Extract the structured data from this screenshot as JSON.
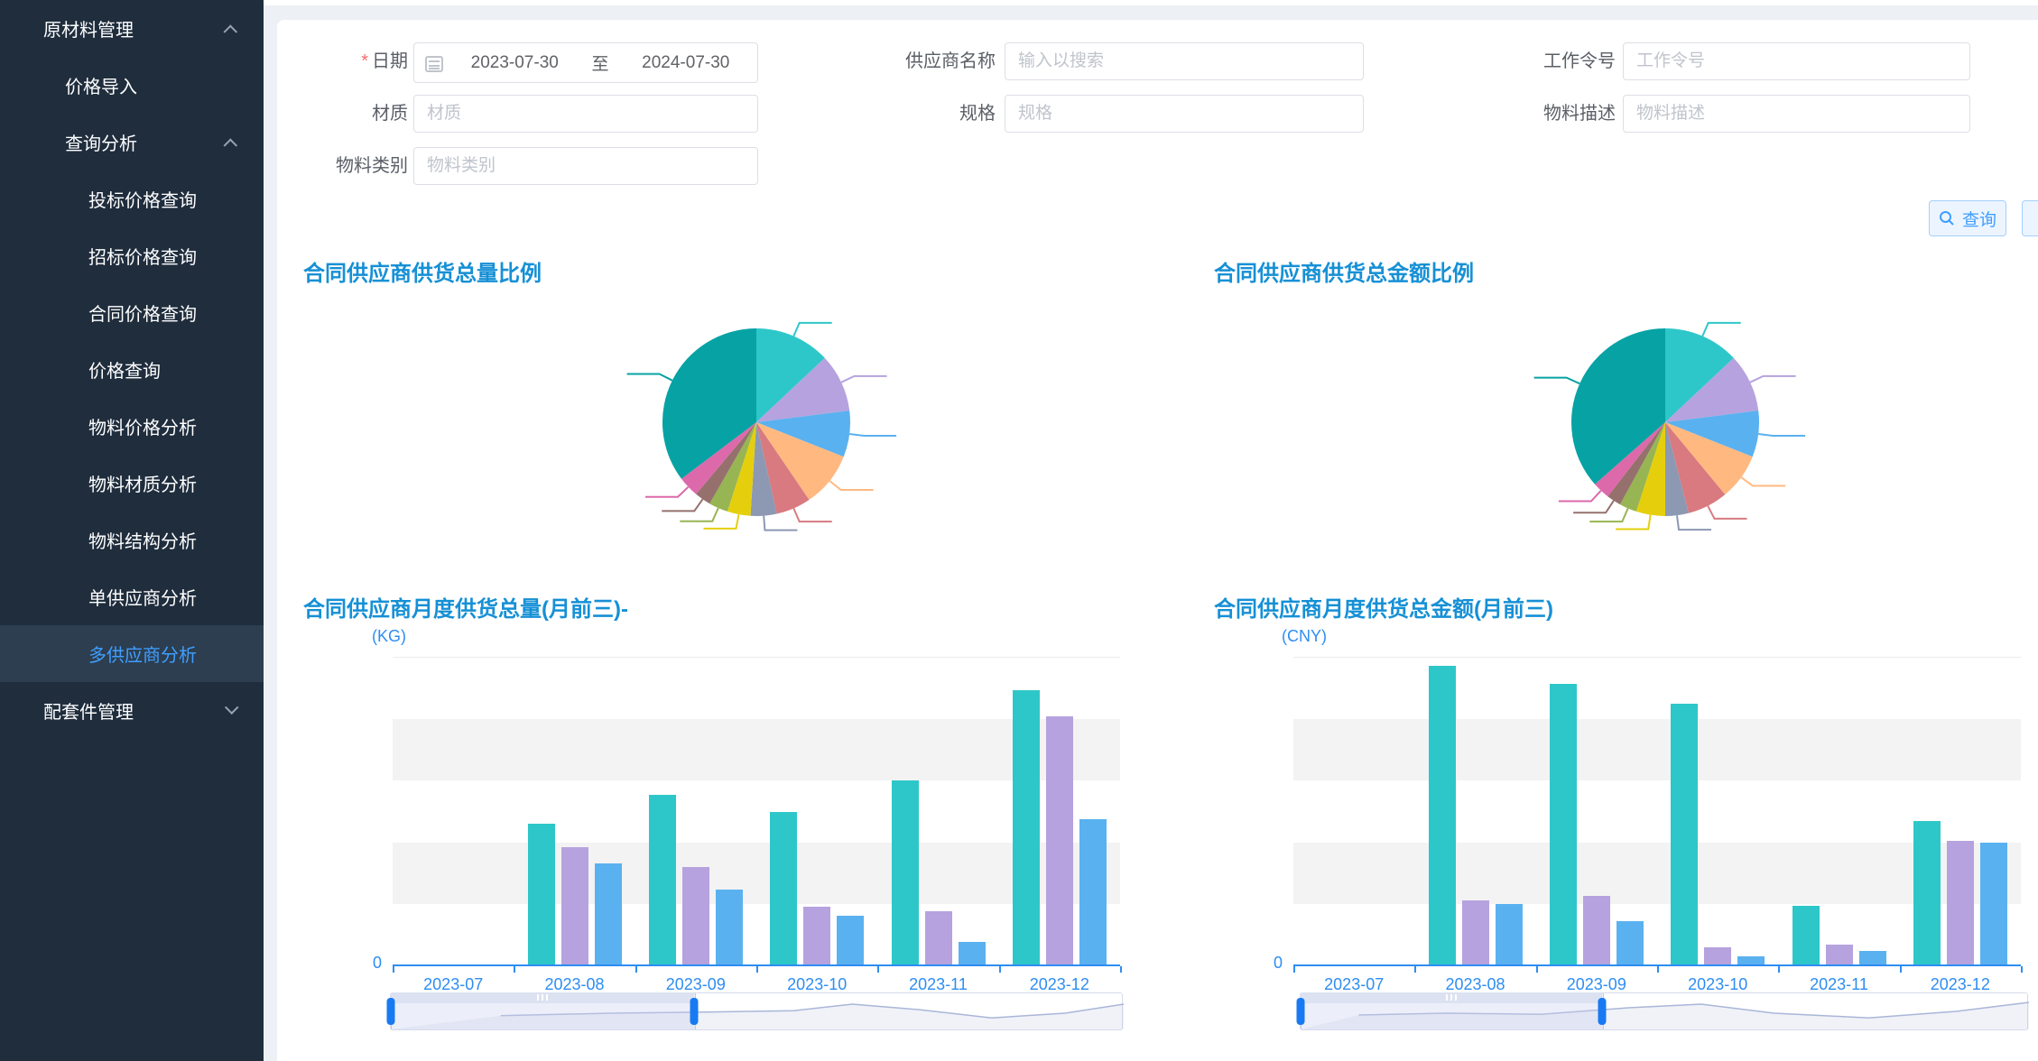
{
  "sidebar": {
    "items": [
      {
        "label": "原材料管理",
        "level": 1,
        "chevron": "up",
        "active": false
      },
      {
        "label": "价格导入",
        "level": 2,
        "chevron": "",
        "active": false
      },
      {
        "label": "查询分析",
        "level": 2,
        "chevron": "up",
        "active": false
      },
      {
        "label": "投标价格查询",
        "level": 3,
        "chevron": "",
        "active": false
      },
      {
        "label": "招标价格查询",
        "level": 3,
        "chevron": "",
        "active": false
      },
      {
        "label": "合同价格查询",
        "level": 3,
        "chevron": "",
        "active": false
      },
      {
        "label": "价格查询",
        "level": 3,
        "chevron": "",
        "active": false
      },
      {
        "label": "物料价格分析",
        "level": 3,
        "chevron": "",
        "active": false
      },
      {
        "label": "物料材质分析",
        "level": 3,
        "chevron": "",
        "active": false
      },
      {
        "label": "物料结构分析",
        "level": 3,
        "chevron": "",
        "active": false
      },
      {
        "label": "单供应商分析",
        "level": 3,
        "chevron": "",
        "active": false
      },
      {
        "label": "多供应商分析",
        "level": 3,
        "chevron": "",
        "active": true
      },
      {
        "label": "配套件管理",
        "level": 1,
        "chevron": "down",
        "active": false
      }
    ],
    "colors": {
      "bg": "#1f2d3d",
      "active_bg": "#2c3e50",
      "active_text": "#409eff"
    }
  },
  "filters": {
    "date": {
      "label": "日期",
      "required": true,
      "start": "2023-07-30",
      "separator": "至",
      "end": "2024-07-30"
    },
    "fields": [
      {
        "key": "supplier",
        "label": "供应商名称",
        "placeholder": "输入以搜索",
        "value": "",
        "col": 2,
        "row": 1
      },
      {
        "key": "work-order",
        "label": "工作令号",
        "placeholder": "工作令号",
        "value": "",
        "col": 3,
        "row": 1
      },
      {
        "key": "material",
        "label": "材质",
        "placeholder": "材质",
        "value": "",
        "col": 1,
        "row": 2
      },
      {
        "key": "spec",
        "label": "规格",
        "placeholder": "规格",
        "value": "",
        "col": 2,
        "row": 2
      },
      {
        "key": "material-desc",
        "label": "物料描述",
        "placeholder": "物料描述",
        "value": "",
        "col": 3,
        "row": 2
      },
      {
        "key": "material-category",
        "label": "物料类别",
        "placeholder": "物料类别",
        "value": "",
        "col": 1,
        "row": 3
      }
    ],
    "query_button": "查询"
  },
  "chart_data": [
    {
      "type": "pie",
      "title": "合同供应商供货总量比例",
      "slices": [
        {
          "value": 13,
          "color": "#2ec7c9"
        },
        {
          "value": 10,
          "color": "#b6a2de"
        },
        {
          "value": 8,
          "color": "#5ab1ef"
        },
        {
          "value": 9.5,
          "color": "#ffb980"
        },
        {
          "value": 6,
          "color": "#d87a80"
        },
        {
          "value": 4.5,
          "color": "#8d98b3"
        },
        {
          "value": 4,
          "color": "#e5cf0d"
        },
        {
          "value": 3.3,
          "color": "#97b552"
        },
        {
          "value": 2.8,
          "color": "#95706d"
        },
        {
          "value": 3.6,
          "color": "#dc69aa"
        },
        {
          "value": 35.3,
          "color": "#07a2a4"
        }
      ],
      "legend": "none",
      "labels_hidden": true
    },
    {
      "type": "pie",
      "title": "合同供应商供货总金额比例",
      "slices": [
        {
          "value": 13,
          "color": "#2ec7c9"
        },
        {
          "value": 10,
          "color": "#b6a2de"
        },
        {
          "value": 8,
          "color": "#5ab1ef"
        },
        {
          "value": 8,
          "color": "#ffb980"
        },
        {
          "value": 7,
          "color": "#d87a80"
        },
        {
          "value": 4,
          "color": "#8d98b3"
        },
        {
          "value": 5,
          "color": "#e5cf0d"
        },
        {
          "value": 3,
          "color": "#97b552"
        },
        {
          "value": 2.5,
          "color": "#95706d"
        },
        {
          "value": 3,
          "color": "#dc69aa"
        },
        {
          "value": 36.5,
          "color": "#07a2a4"
        }
      ],
      "legend": "none",
      "labels_hidden": true
    },
    {
      "type": "bar",
      "title": "合同供应商月度供货总量(月前三)-",
      "ylabel": "(KG)",
      "categories": [
        "2023-07",
        "2023-08",
        "2023-09",
        "2023-10",
        "2023-11",
        "2023-12"
      ],
      "series": [
        {
          "color": "#2ec7c9",
          "values": [
            0,
            46,
            55.5,
            50,
            60,
            89.5
          ]
        },
        {
          "color": "#b6a2de",
          "values": [
            0,
            38.5,
            32,
            19,
            17.5,
            81
          ]
        },
        {
          "color": "#5ab1ef",
          "values": [
            0,
            33,
            24.5,
            16,
            7.7,
            47.5
          ]
        }
      ],
      "y_axis_visible_label": "0",
      "ylim": [
        0,
        100
      ],
      "grid": "striped",
      "datazoom": {
        "start_pct": 0,
        "end_pct": 41.5
      }
    },
    {
      "type": "bar",
      "title": "合同供应商月度供货总金额(月前三)",
      "ylabel": "(CNY)",
      "categories": [
        "2023-07",
        "2023-08",
        "2023-09",
        "2023-10",
        "2023-11",
        "2023-12"
      ],
      "series": [
        {
          "color": "#2ec7c9",
          "values": [
            0,
            97.5,
            91.5,
            85,
            19.5,
            47
          ]
        },
        {
          "color": "#b6a2de",
          "values": [
            0,
            21,
            22.5,
            6,
            6.8,
            40.5
          ]
        },
        {
          "color": "#5ab1ef",
          "values": [
            0,
            20,
            14.5,
            3,
            4.8,
            40
          ]
        }
      ],
      "y_axis_visible_label": "0",
      "ylim": [
        0,
        100
      ],
      "grid": "striped",
      "datazoom": {
        "start_pct": 0,
        "end_pct": 41.5
      }
    }
  ]
}
